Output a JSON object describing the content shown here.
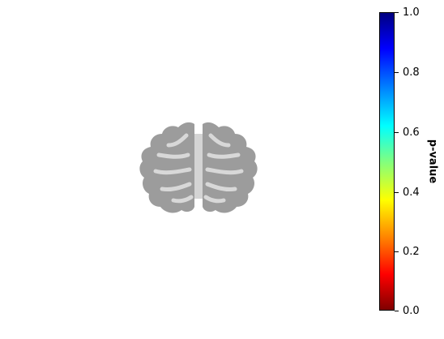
{
  "image": {
    "subject": "brain-slice",
    "tissue_color": "#9a9a9a",
    "highlight_color": "#cfcfcf"
  },
  "colorbar": {
    "label": "p-value",
    "colormap": "jet-reversed",
    "ticks": [
      "0.0",
      "0.2",
      "0.4",
      "0.6",
      "0.8",
      "1.0"
    ],
    "range": [
      0.0,
      1.0
    ]
  }
}
